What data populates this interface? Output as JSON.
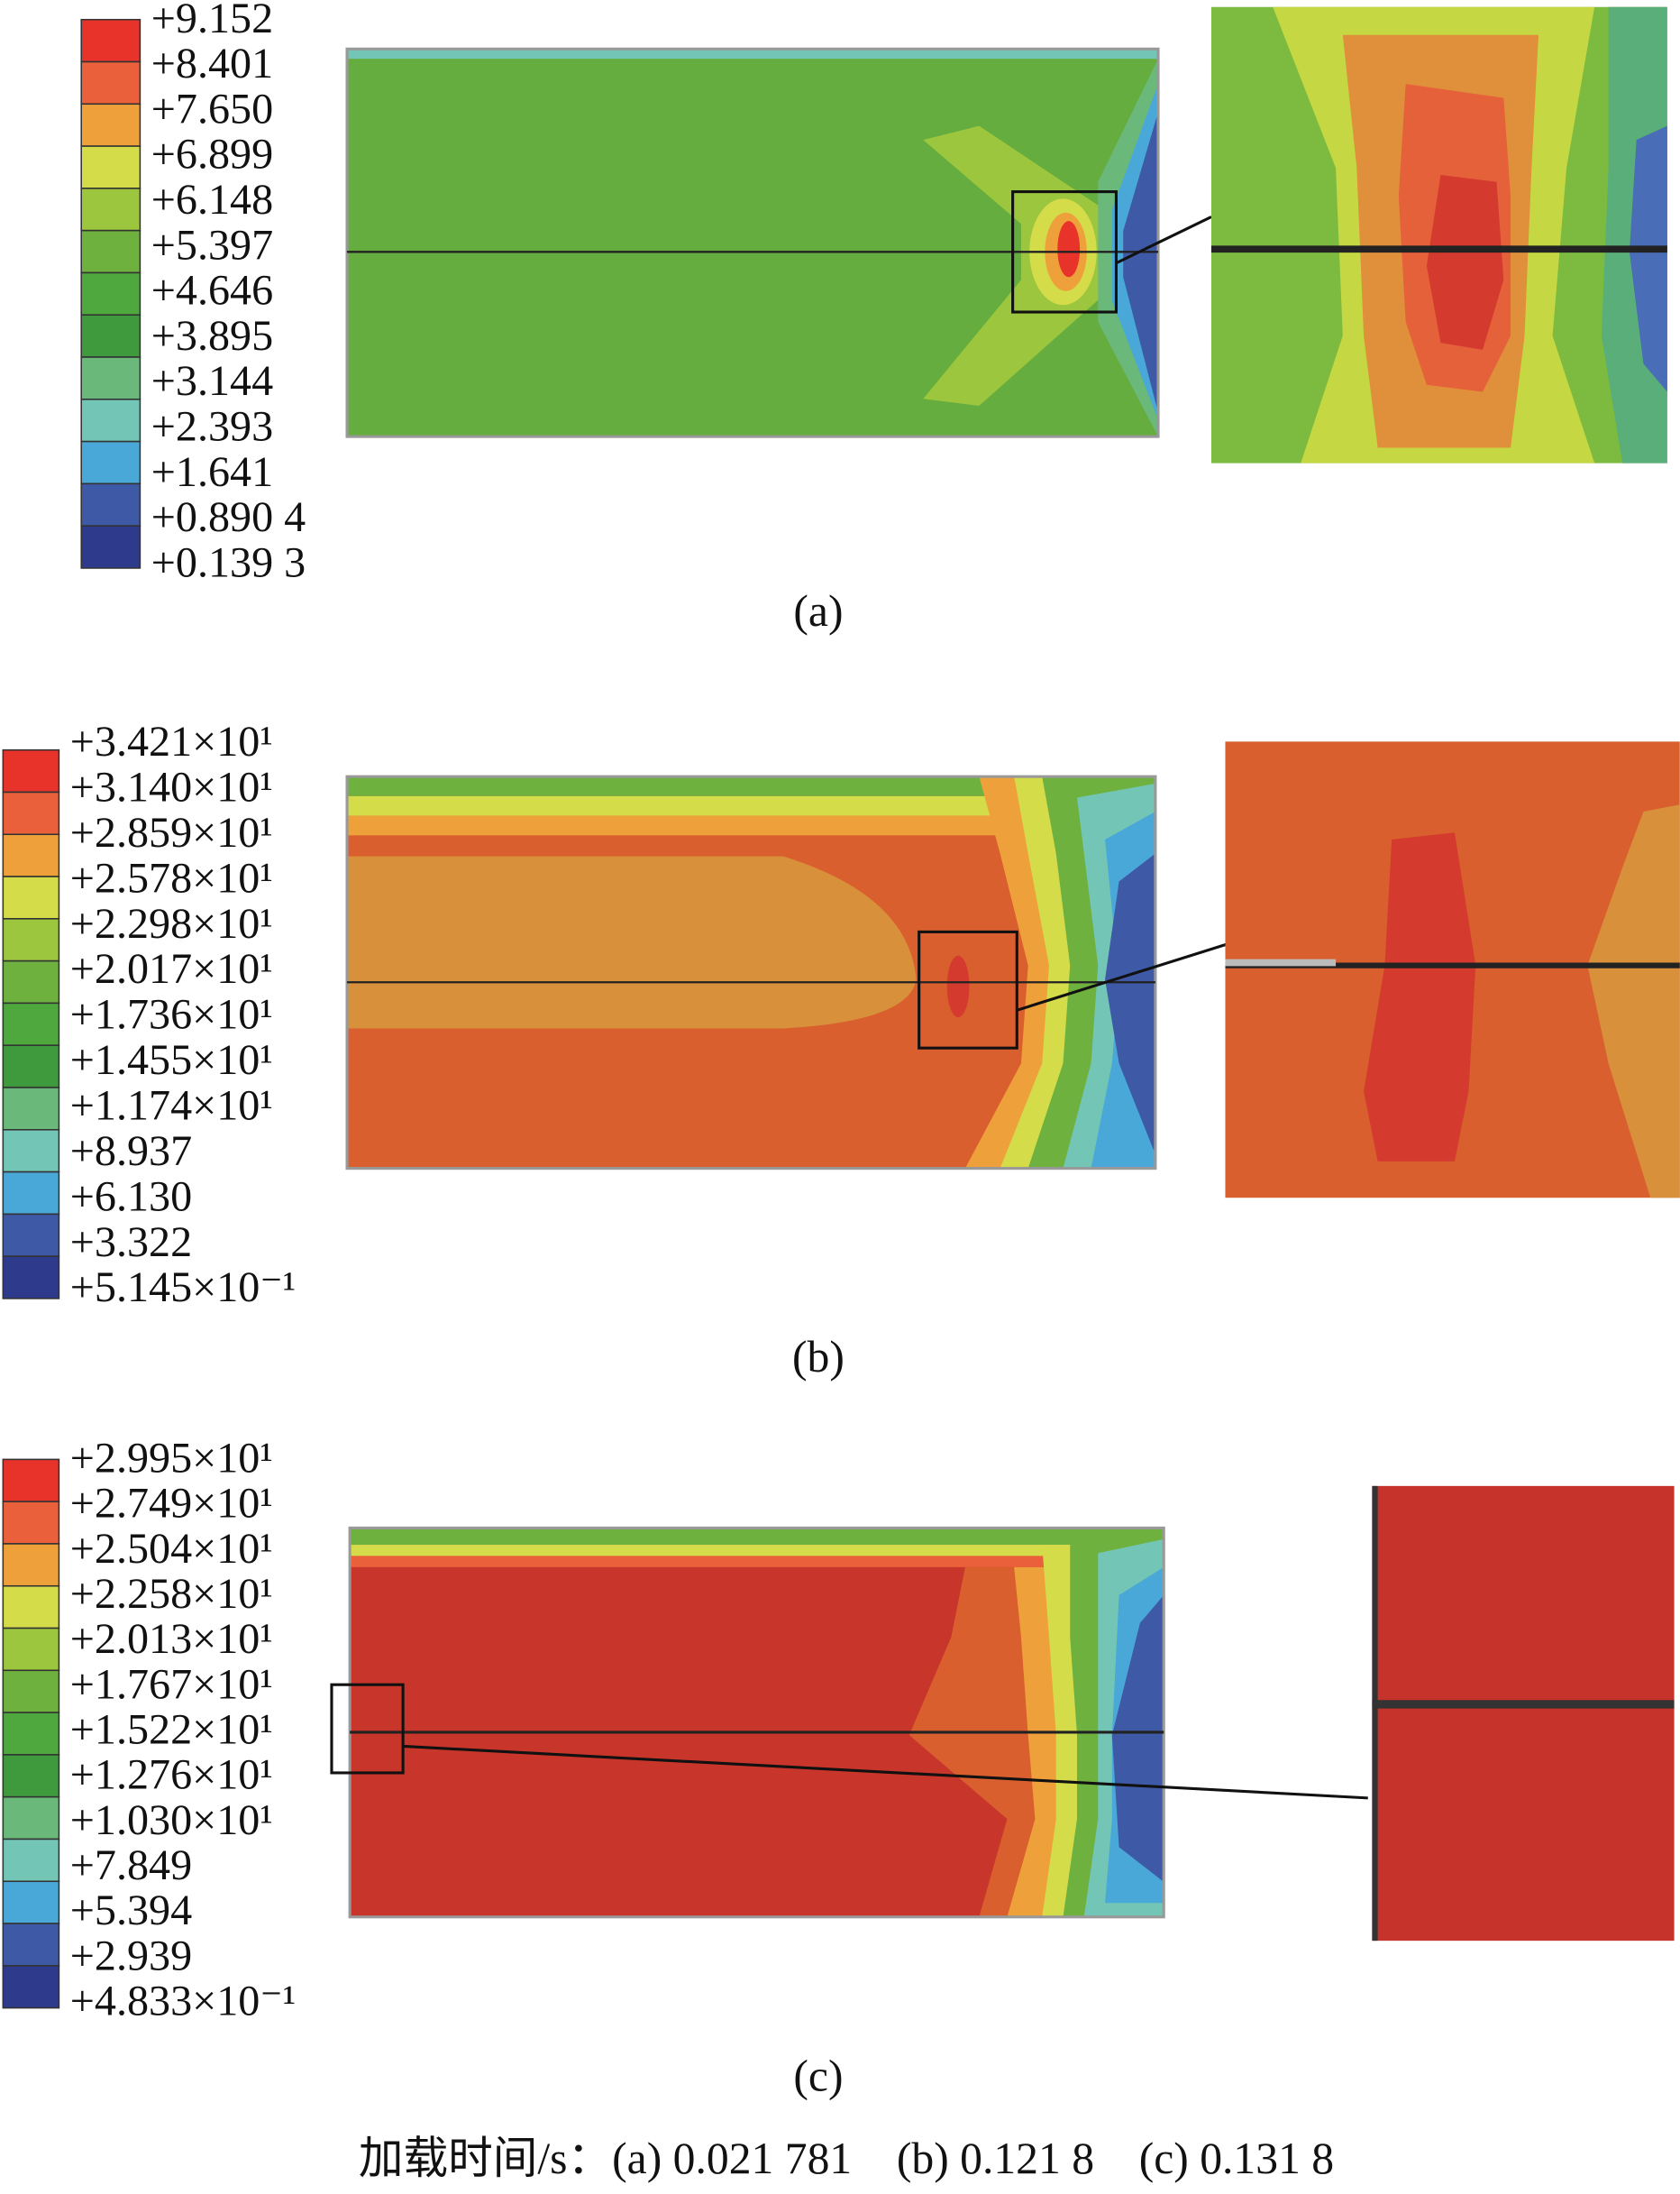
{
  "panels": [
    {
      "legend": [
        "+9.152",
        "+8.401",
        "+7.650",
        "+6.899",
        "+6.148",
        "+5.397",
        "+4.646",
        "+3.895",
        "+3.144",
        "+2.393",
        "+1.641",
        "+0.890 4",
        "+0.139 3"
      ],
      "label": "(a)"
    },
    {
      "legend": [
        "+3.421×10¹",
        "+3.140×10¹",
        "+2.859×10¹",
        "+2.578×10¹",
        "+2.298×10¹",
        "+2.017×10¹",
        "+1.736×10¹",
        "+1.455×10¹",
        "+1.174×10¹",
        "+8.937",
        "+6.130",
        "+3.322",
        "+5.145×10⁻¹"
      ],
      "label": "(b)"
    },
    {
      "legend": [
        "+2.995×10¹",
        "+2.749×10¹",
        "+2.504×10¹",
        "+2.258×10¹",
        "+2.013×10¹",
        "+1.767×10¹",
        "+1.522×10¹",
        "+1.276×10¹",
        "+1.030×10¹",
        "+7.849",
        "+5.394",
        "+2.939",
        "+4.833×10⁻¹"
      ],
      "label": "(c)"
    }
  ],
  "caption": "加载时间/s：(a) 0.021 781    (b) 0.121 8    (c) 0.131 8"
}
